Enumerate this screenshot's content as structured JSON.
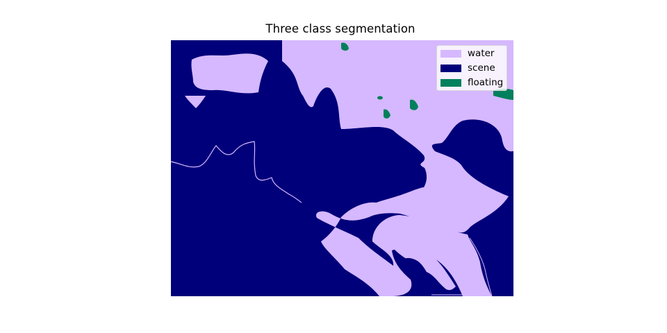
{
  "title": "Three class segmentation",
  "legend": {
    "entries": [
      {
        "label": "water",
        "color": "#d5b8ff"
      },
      {
        "label": "scene",
        "color": "#00007a"
      },
      {
        "label": "floating",
        "color": "#00805c"
      }
    ]
  },
  "image": {
    "description_colors": {
      "water": "#d5b8ff",
      "scene": "#00007a",
      "floating": "#00805c"
    }
  }
}
